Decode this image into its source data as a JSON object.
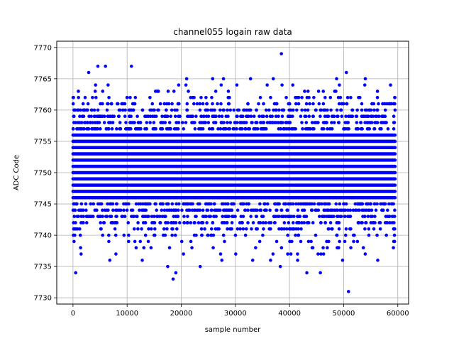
{
  "chart_data": {
    "type": "scatter",
    "title": "channel055 logain raw data",
    "xlabel": "sample number",
    "ylabel": "ADC Code",
    "xlim": [
      -3000,
      62000
    ],
    "ylim": [
      7729,
      7771
    ],
    "xticks": [
      0,
      10000,
      20000,
      30000,
      40000,
      50000,
      60000
    ],
    "yticks": [
      7730,
      7735,
      7740,
      7745,
      7750,
      7755,
      7760,
      7765,
      7770
    ],
    "grid": true,
    "marker_color": "#0000ff",
    "series": [
      {
        "x_range": [
          0,
          59500
        ],
        "dense_band": [
          7739,
          7762
        ],
        "outliers": [
          {
            "x": 500,
            "y": 7734
          },
          {
            "x": 2900,
            "y": 7766
          },
          {
            "x": 4600,
            "y": 7767
          },
          {
            "x": 6000,
            "y": 7767
          },
          {
            "x": 10800,
            "y": 7767
          },
          {
            "x": 21000,
            "y": 7765
          },
          {
            "x": 25800,
            "y": 7765
          },
          {
            "x": 27800,
            "y": 7765
          },
          {
            "x": 32800,
            "y": 7765
          },
          {
            "x": 37000,
            "y": 7765
          },
          {
            "x": 38500,
            "y": 7769
          },
          {
            "x": 48700,
            "y": 7765
          },
          {
            "x": 50500,
            "y": 7766
          },
          {
            "x": 54000,
            "y": 7765
          },
          {
            "x": 17500,
            "y": 7735
          },
          {
            "x": 18500,
            "y": 7733
          },
          {
            "x": 19000,
            "y": 7734
          },
          {
            "x": 23500,
            "y": 7735
          },
          {
            "x": 38300,
            "y": 7735
          },
          {
            "x": 43200,
            "y": 7734
          },
          {
            "x": 45700,
            "y": 7734
          },
          {
            "x": 50900,
            "y": 7731
          },
          {
            "x": 1500,
            "y": 7737
          },
          {
            "x": 6800,
            "y": 7736
          },
          {
            "x": 12800,
            "y": 7736
          },
          {
            "x": 27500,
            "y": 7736
          },
          {
            "x": 33200,
            "y": 7736
          },
          {
            "x": 36500,
            "y": 7736
          },
          {
            "x": 41500,
            "y": 7736
          },
          {
            "x": 49800,
            "y": 7736
          },
          {
            "x": 56300,
            "y": 7736
          }
        ]
      }
    ]
  }
}
